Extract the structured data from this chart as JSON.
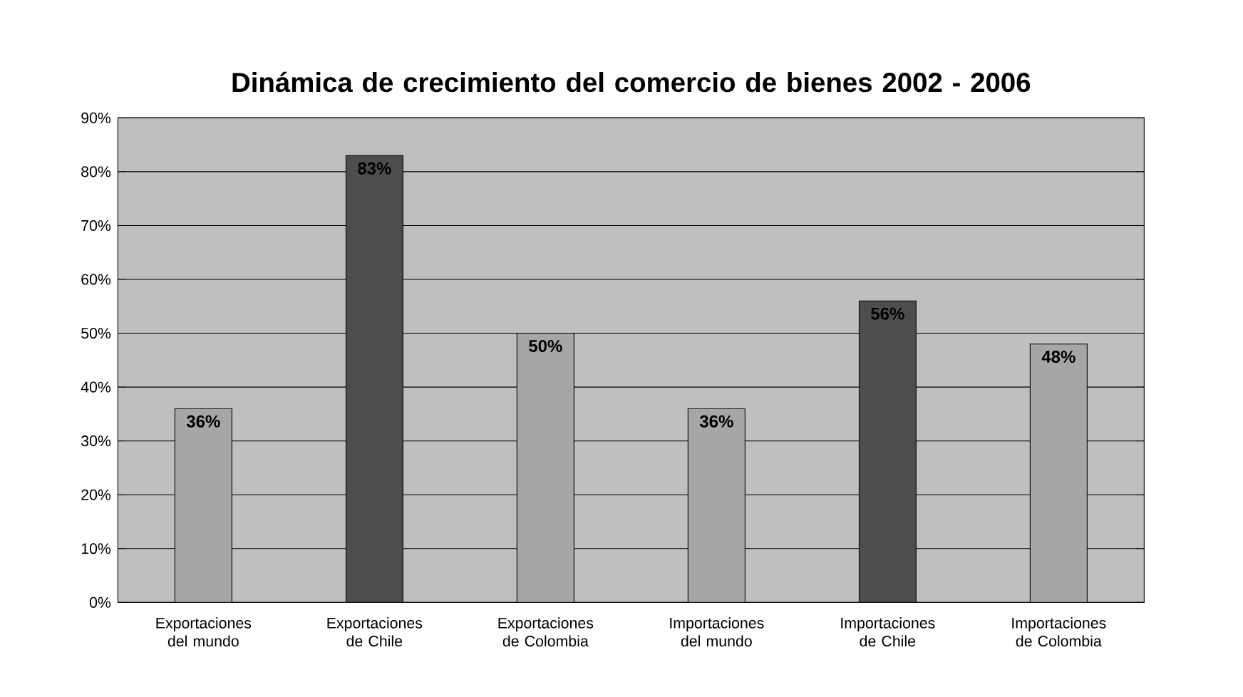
{
  "chart_data": {
    "type": "bar",
    "title": "Dinámica de crecimiento del comercio de bienes 2002 - 2006",
    "categories": [
      "Exportaciones del mundo",
      "Exportaciones de Chile",
      "Exportaciones de Colombia",
      "Importaciones del mundo",
      "Importaciones de Chile",
      "Importaciones de Colombia"
    ],
    "values": [
      36,
      83,
      50,
      36,
      56,
      48
    ],
    "value_labels": [
      "36%",
      "83%",
      "50%",
      "36%",
      "56%",
      "48%"
    ],
    "colors": [
      "#a6a6a6",
      "#4d4d4d",
      "#a6a6a6",
      "#a6a6a6",
      "#4d4d4d",
      "#a6a6a6"
    ],
    "ylim": [
      0,
      90
    ],
    "yticks": [
      {
        "value": 0,
        "label": "0%"
      },
      {
        "value": 10,
        "label": "10%"
      },
      {
        "value": 20,
        "label": "20%"
      },
      {
        "value": 30,
        "label": "30%"
      },
      {
        "value": 40,
        "label": "40%"
      },
      {
        "value": 50,
        "label": "50%"
      },
      {
        "value": 60,
        "label": "60%"
      },
      {
        "value": 70,
        "label": "70%"
      },
      {
        "value": 80,
        "label": "80%"
      },
      {
        "value": 90,
        "label": "90%"
      }
    ],
    "grid": "y"
  }
}
